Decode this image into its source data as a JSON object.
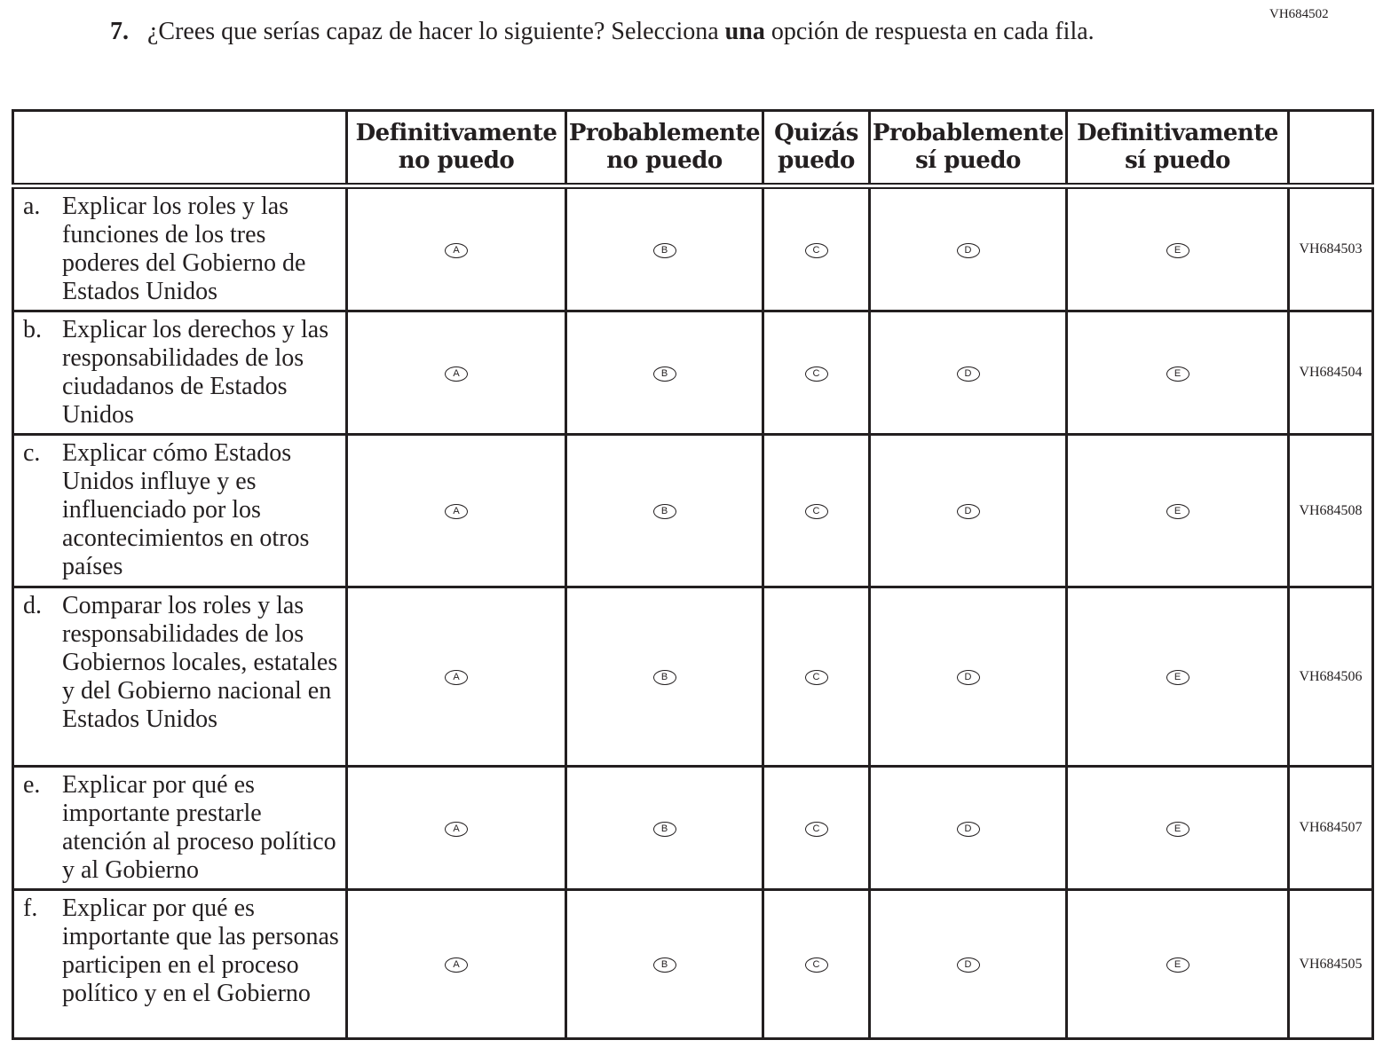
{
  "question": {
    "id": "VH684502",
    "number": "7.",
    "text_before": "¿Crees que serías capaz de hacer lo siguiente? Selecciona ",
    "text_bold": "una",
    "text_after": " opción de respuesta en cada fila."
  },
  "columns": [
    {
      "line1": "Definitivamente",
      "line2": "no puedo",
      "letter": "A"
    },
    {
      "line1": "Probablemente",
      "line2": "no puedo",
      "letter": "B"
    },
    {
      "line1": "Quizás",
      "line2": "puedo",
      "letter": "C"
    },
    {
      "line1": "Probablemente",
      "line2": "sí puedo",
      "letter": "D"
    },
    {
      "line1": "Definitivamente",
      "line2": "sí puedo",
      "letter": "E"
    }
  ],
  "rows": [
    {
      "letter": "a.",
      "text": "Explicar los roles y las funciones de los tres poderes del Gobierno de Estados Unidos",
      "code": "VH684503"
    },
    {
      "letter": "b.",
      "text": "Explicar los derechos y las responsabilidades de los ciudadanos de Estados Unidos",
      "code": "VH684504"
    },
    {
      "letter": "c.",
      "text": "Explicar cómo Estados Unidos influye y es influenciado por los acontecimientos en otros países",
      "code": "VH684508"
    },
    {
      "letter": "d.",
      "text": "Comparar los roles y las responsabilidades de los Gobiernos locales, estatales y del Gobierno nacional en Estados Unidos",
      "code": "VH684506"
    },
    {
      "letter": "e.",
      "text": "Explicar por qué es importante prestarle atención al proceso político y al Gobierno",
      "code": "VH684507"
    },
    {
      "letter": "f.",
      "text": "Explicar por qué es importante que las personas participen en el proceso político y en el Gobierno",
      "code": "VH684505"
    }
  ]
}
